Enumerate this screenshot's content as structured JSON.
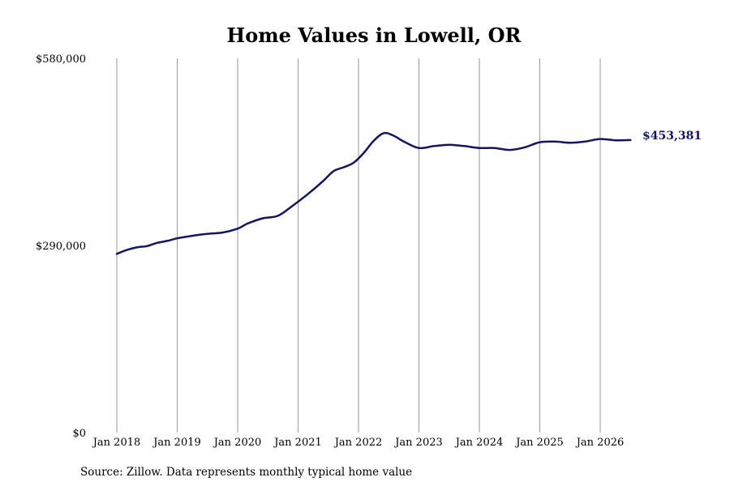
{
  "source_note": "Source: Zillow. Data represents monthly typical home value",
  "chart_data": {
    "type": "line",
    "title": "Home Values in Lowell, OR",
    "xlabel": "",
    "ylabel": "",
    "x_range": [
      "2018-01",
      "2026-07"
    ],
    "ylim": [
      0,
      580000
    ],
    "y_ticks": [
      {
        "value": 0,
        "label": "$0"
      },
      {
        "value": 290000,
        "label": "$290,000"
      },
      {
        "value": 580000,
        "label": "$580,000"
      }
    ],
    "x_ticks": [
      {
        "date": "2018-01",
        "label": "Jan 2018"
      },
      {
        "date": "2019-01",
        "label": "Jan 2019"
      },
      {
        "date": "2020-01",
        "label": "Jan 2020"
      },
      {
        "date": "2021-01",
        "label": "Jan 2021"
      },
      {
        "date": "2022-01",
        "label": "Jan 2022"
      },
      {
        "date": "2023-01",
        "label": "Jan 2023"
      },
      {
        "date": "2024-01",
        "label": "Jan 2024"
      },
      {
        "date": "2025-01",
        "label": "Jan 2025"
      },
      {
        "date": "2026-01",
        "label": "Jan 2026"
      }
    ],
    "grid": {
      "vertical": true,
      "horizontal": false
    },
    "legend": "none",
    "end_label": "$453,381",
    "series": [
      {
        "color": "#141466",
        "points": [
          {
            "x": "2018-01",
            "y": 277000
          },
          {
            "x": "2018-03",
            "y": 283000
          },
          {
            "x": "2018-05",
            "y": 287000
          },
          {
            "x": "2018-07",
            "y": 289000
          },
          {
            "x": "2018-09",
            "y": 294000
          },
          {
            "x": "2018-11",
            "y": 297000
          },
          {
            "x": "2019-01",
            "y": 301000
          },
          {
            "x": "2019-04",
            "y": 305000
          },
          {
            "x": "2019-07",
            "y": 308000
          },
          {
            "x": "2019-10",
            "y": 310000
          },
          {
            "x": "2020-01",
            "y": 316000
          },
          {
            "x": "2020-03",
            "y": 324000
          },
          {
            "x": "2020-06",
            "y": 332000
          },
          {
            "x": "2020-09",
            "y": 336000
          },
          {
            "x": "2020-12",
            "y": 352000
          },
          {
            "x": "2021-03",
            "y": 370000
          },
          {
            "x": "2021-06",
            "y": 390000
          },
          {
            "x": "2021-08",
            "y": 405000
          },
          {
            "x": "2021-10",
            "y": 411000
          },
          {
            "x": "2021-12",
            "y": 418000
          },
          {
            "x": "2022-02",
            "y": 433000
          },
          {
            "x": "2022-04",
            "y": 452000
          },
          {
            "x": "2022-06",
            "y": 464000
          },
          {
            "x": "2022-08",
            "y": 460000
          },
          {
            "x": "2022-10",
            "y": 451000
          },
          {
            "x": "2023-01",
            "y": 441000
          },
          {
            "x": "2023-04",
            "y": 444000
          },
          {
            "x": "2023-07",
            "y": 446000
          },
          {
            "x": "2023-10",
            "y": 444000
          },
          {
            "x": "2024-01",
            "y": 441000
          },
          {
            "x": "2024-04",
            "y": 441000
          },
          {
            "x": "2024-07",
            "y": 438000
          },
          {
            "x": "2024-10",
            "y": 442000
          },
          {
            "x": "2025-01",
            "y": 450000
          },
          {
            "x": "2025-04",
            "y": 451000
          },
          {
            "x": "2025-07",
            "y": 449000
          },
          {
            "x": "2025-10",
            "y": 451000
          },
          {
            "x": "2026-01",
            "y": 455000
          },
          {
            "x": "2026-04",
            "y": 453000
          },
          {
            "x": "2026-07",
            "y": 453381
          }
        ]
      }
    ]
  }
}
